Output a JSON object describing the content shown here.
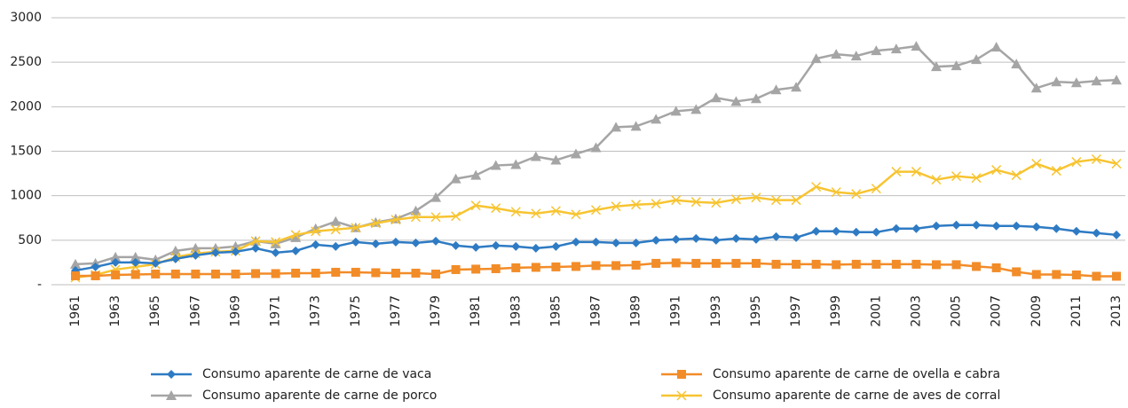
{
  "chart_data": {
    "type": "line",
    "categories": [
      "1961",
      null,
      "1963",
      null,
      "1965",
      null,
      "1967",
      null,
      "1969",
      null,
      "1971",
      null,
      "1973",
      null,
      "1975",
      null,
      "1977",
      null,
      "1979",
      null,
      "1981",
      null,
      "1983",
      null,
      "1985",
      null,
      "1987",
      null,
      "1989",
      null,
      "1991",
      null,
      "1993",
      null,
      "1995",
      null,
      "1997",
      null,
      "1999",
      null,
      "2001",
      null,
      "2003",
      null,
      "2005",
      null,
      "2007",
      null,
      "2009",
      null,
      "2011",
      null,
      "2013"
    ],
    "ylim": [
      0,
      3000
    ],
    "yticks": [
      {
        "value": 0,
        "label": "-"
      },
      500,
      1000,
      1500,
      2000,
      2500,
      3000
    ],
    "grid": true,
    "series": [
      {
        "name": "Consumo aparente de carne de vaca",
        "color": "#2e7bc4",
        "marker": "diamond",
        "values": [
          160,
          200,
          250,
          250,
          240,
          290,
          330,
          360,
          370,
          410,
          360,
          380,
          450,
          430,
          480,
          460,
          480,
          470,
          490,
          440,
          420,
          440,
          430,
          410,
          430,
          480,
          480,
          470,
          470,
          500,
          510,
          520,
          500,
          520,
          510,
          540,
          530,
          600,
          600,
          590,
          590,
          630,
          630,
          660,
          670,
          670,
          660,
          660,
          650,
          630,
          600,
          580,
          560
        ]
      },
      {
        "name": "Consumo aparente de carne de ovella e cabra",
        "color": "#f28c28",
        "marker": "square",
        "values": [
          100,
          100,
          110,
          115,
          120,
          120,
          120,
          120,
          120,
          125,
          125,
          130,
          130,
          140,
          140,
          135,
          130,
          130,
          120,
          170,
          175,
          180,
          190,
          195,
          200,
          205,
          215,
          215,
          220,
          240,
          245,
          240,
          240,
          240,
          240,
          230,
          230,
          230,
          225,
          230,
          230,
          230,
          230,
          225,
          225,
          205,
          190,
          145,
          115,
          115,
          110,
          95,
          95
        ]
      },
      {
        "name": "Consumo aparente de carne de porco",
        "color": "#a5a5a5",
        "marker": "triangle",
        "values": [
          230,
          240,
          310,
          310,
          280,
          380,
          410,
          410,
          430,
          490,
          460,
          530,
          630,
          710,
          640,
          700,
          740,
          830,
          980,
          1190,
          1230,
          1340,
          1350,
          1440,
          1400,
          1470,
          1540,
          1770,
          1780,
          1860,
          1950,
          1970,
          2100,
          2060,
          2090,
          2190,
          2220,
          2540,
          2590,
          2570,
          2630,
          2650,
          2680,
          2450,
          2460,
          2530,
          2670,
          2480,
          2210,
          2280,
          2270,
          2290,
          2300
        ]
      },
      {
        "name": "Consumo aparente de carne de aves de corral",
        "color": "#f7c431",
        "marker": "x",
        "values": [
          80,
          110,
          170,
          200,
          230,
          310,
          350,
          370,
          380,
          490,
          480,
          560,
          600,
          620,
          640,
          690,
          730,
          760,
          760,
          770,
          890,
          860,
          820,
          800,
          830,
          790,
          840,
          880,
          900,
          910,
          950,
          930,
          920,
          960,
          980,
          950,
          950,
          1100,
          1040,
          1020,
          1080,
          1270,
          1270,
          1180,
          1220,
          1200,
          1290,
          1230,
          1360,
          1280,
          1380,
          1410,
          1360
        ]
      }
    ]
  }
}
